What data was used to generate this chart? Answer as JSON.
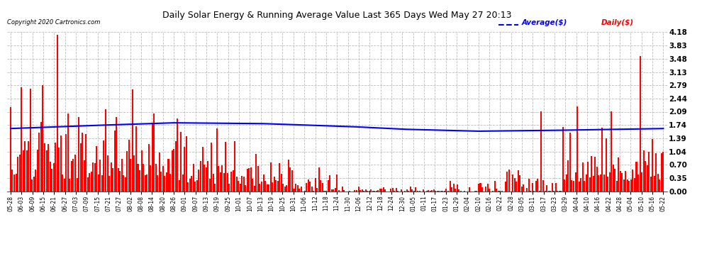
{
  "title": "Daily Solar Energy & Running Average Value Last 365 Days Wed May 27 20:13",
  "copyright": "Copyright 2020 Cartronics.com",
  "legend_average": "Average($)",
  "legend_daily": "Daily($)",
  "bar_color": "#FF0000",
  "avg_line_color": "#0000FF",
  "background_color": "#FFFFFF",
  "grid_color": "#BBBBBB",
  "yticks": [
    0.0,
    0.35,
    0.7,
    1.04,
    1.39,
    1.74,
    2.09,
    2.44,
    2.79,
    3.13,
    3.48,
    3.83,
    4.18
  ],
  "ylim": [
    0.0,
    4.18
  ],
  "xlabels": [
    "05-28",
    "06-03",
    "06-09",
    "06-15",
    "06-21",
    "06-27",
    "07-03",
    "07-09",
    "07-15",
    "07-21",
    "07-27",
    "08-02",
    "08-08",
    "08-14",
    "08-20",
    "08-26",
    "09-01",
    "09-07",
    "09-13",
    "09-19",
    "09-25",
    "10-01",
    "10-07",
    "10-13",
    "10-19",
    "10-25",
    "10-31",
    "11-06",
    "11-12",
    "11-18",
    "11-24",
    "11-30",
    "12-06",
    "12-12",
    "12-18",
    "12-24",
    "12-30",
    "01-05",
    "01-11",
    "01-17",
    "01-23",
    "01-29",
    "02-04",
    "02-10",
    "02-16",
    "02-22",
    "02-28",
    "03-05",
    "03-11",
    "03-17",
    "03-23",
    "03-29",
    "04-04",
    "04-10",
    "04-16",
    "04-22",
    "04-28",
    "05-04",
    "05-10",
    "05-16",
    "05-22"
  ],
  "avg_x": [
    0,
    40,
    90,
    140,
    190,
    220,
    260,
    300,
    340,
    365
  ],
  "avg_y": [
    1.65,
    1.72,
    1.8,
    1.78,
    1.7,
    1.63,
    1.58,
    1.6,
    1.63,
    1.65
  ]
}
